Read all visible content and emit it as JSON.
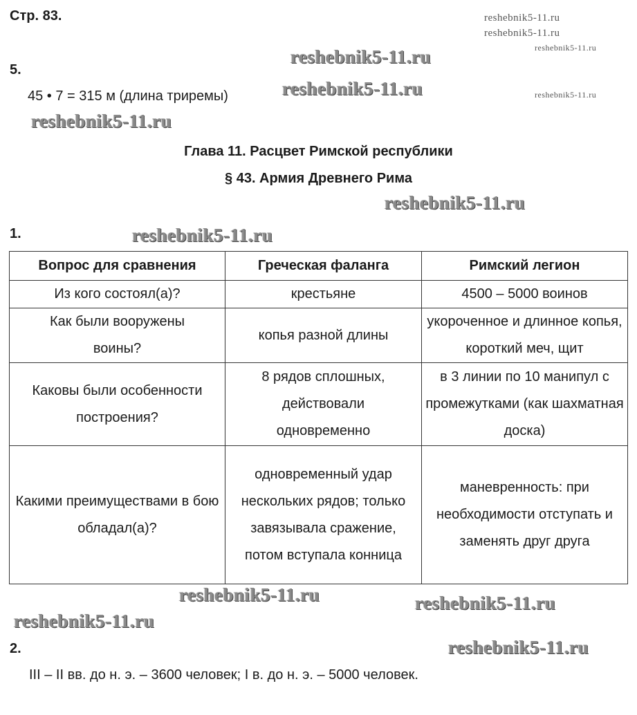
{
  "page_label": "Стр. 83.",
  "task5": {
    "number": "5.",
    "answer": "45 • 7 = 315 м (длина триремы)"
  },
  "chapter_title": "Глава 11. Расцвет Римской республики",
  "section_title": "§ 43. Армия Древнего Рима",
  "task1": {
    "number": "1.",
    "headers": [
      "Вопрос для сравнения",
      "Греческая фаланга",
      "Римский легион"
    ],
    "rows": [
      [
        "Из кого состоял(а)?",
        "крестьяне",
        "4500 – 5000 воинов"
      ],
      [
        "Как были вооружены воины?",
        "копья разной длины",
        "укороченное и длинное копья, короткий меч, щит"
      ],
      [
        "Каковы были особенности построения?",
        "8 рядов сплошных, действовали одновременно",
        "в 3 линии по 10 манипул с промежутками (как шахматная доска)"
      ],
      [
        "Какими преимуществами в бою обладал(а)?",
        "одновременный удар нескольких рядов; только завязывала сражение, потом вступала конница",
        "маневренность: при необходимости отступать и заменять друг друга"
      ]
    ]
  },
  "task2": {
    "number": "2.",
    "answer": "III – II вв. до н. э. – 3600 человек; I в. до н. э. – 5000 человек."
  },
  "watermarks": [
    "reshebnik5-11.ru",
    "reshebnik5-11.ru",
    "reshebnik5-11.ru",
    "reshebnik5-11.ru",
    "reshebnik5-11.ru",
    "reshebnik5-11.ru",
    "reshebnik5-11.ru",
    "reshebnik5-11.ru",
    "reshebnik5-11.ru",
    "reshebnik5-11.ru",
    "reshebnik5-11.ru",
    "reshebnik5-11.ru",
    "reshebnik5-11.ru"
  ]
}
